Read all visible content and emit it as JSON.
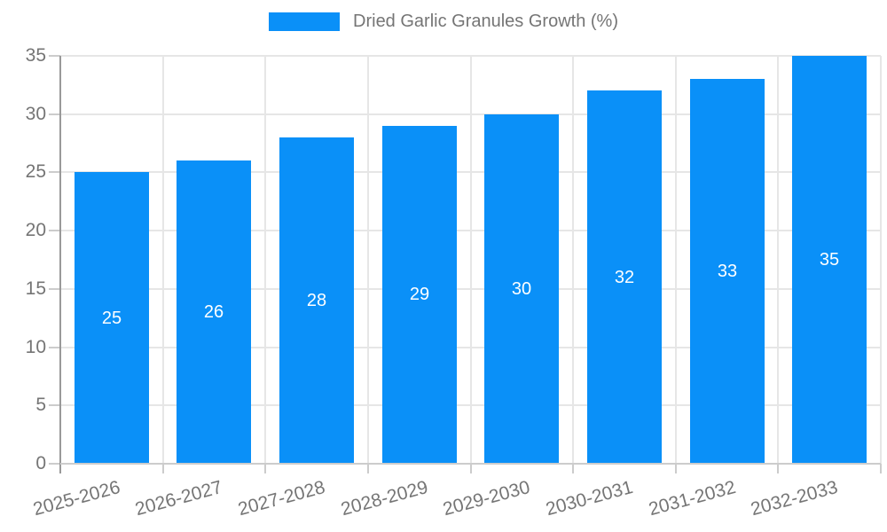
{
  "legend": {
    "label": "Dried Garlic Granules Growth (%)"
  },
  "colors": {
    "bar": "#0a90f8",
    "grid": "#e6e6e6",
    "axis": "#999999",
    "baseline": "#cccccc",
    "tick": "#cccccc",
    "text": "#757575",
    "value_label": "#ffffff",
    "background": "#ffffff"
  },
  "chart_data": {
    "type": "bar",
    "title": "Dried Garlic Granules Growth (%)",
    "categories": [
      "2025-2026",
      "2026-2027",
      "2027-2028",
      "2028-2029",
      "2029-2030",
      "2030-2031",
      "2031-2032",
      "2032-2033"
    ],
    "series": [
      {
        "name": "Dried Garlic Granules Growth (%)",
        "values": [
          25,
          26,
          28,
          29,
          30,
          32,
          33,
          35
        ]
      }
    ],
    "xlabel": "",
    "ylabel": "",
    "ylim": [
      0,
      35
    ],
    "yticks": [
      0,
      5,
      10,
      15,
      20,
      25,
      30,
      35
    ],
    "grid": true,
    "legend_position": "top",
    "value_labels_position": "inside-center",
    "x_label_rotation_deg": -15
  }
}
